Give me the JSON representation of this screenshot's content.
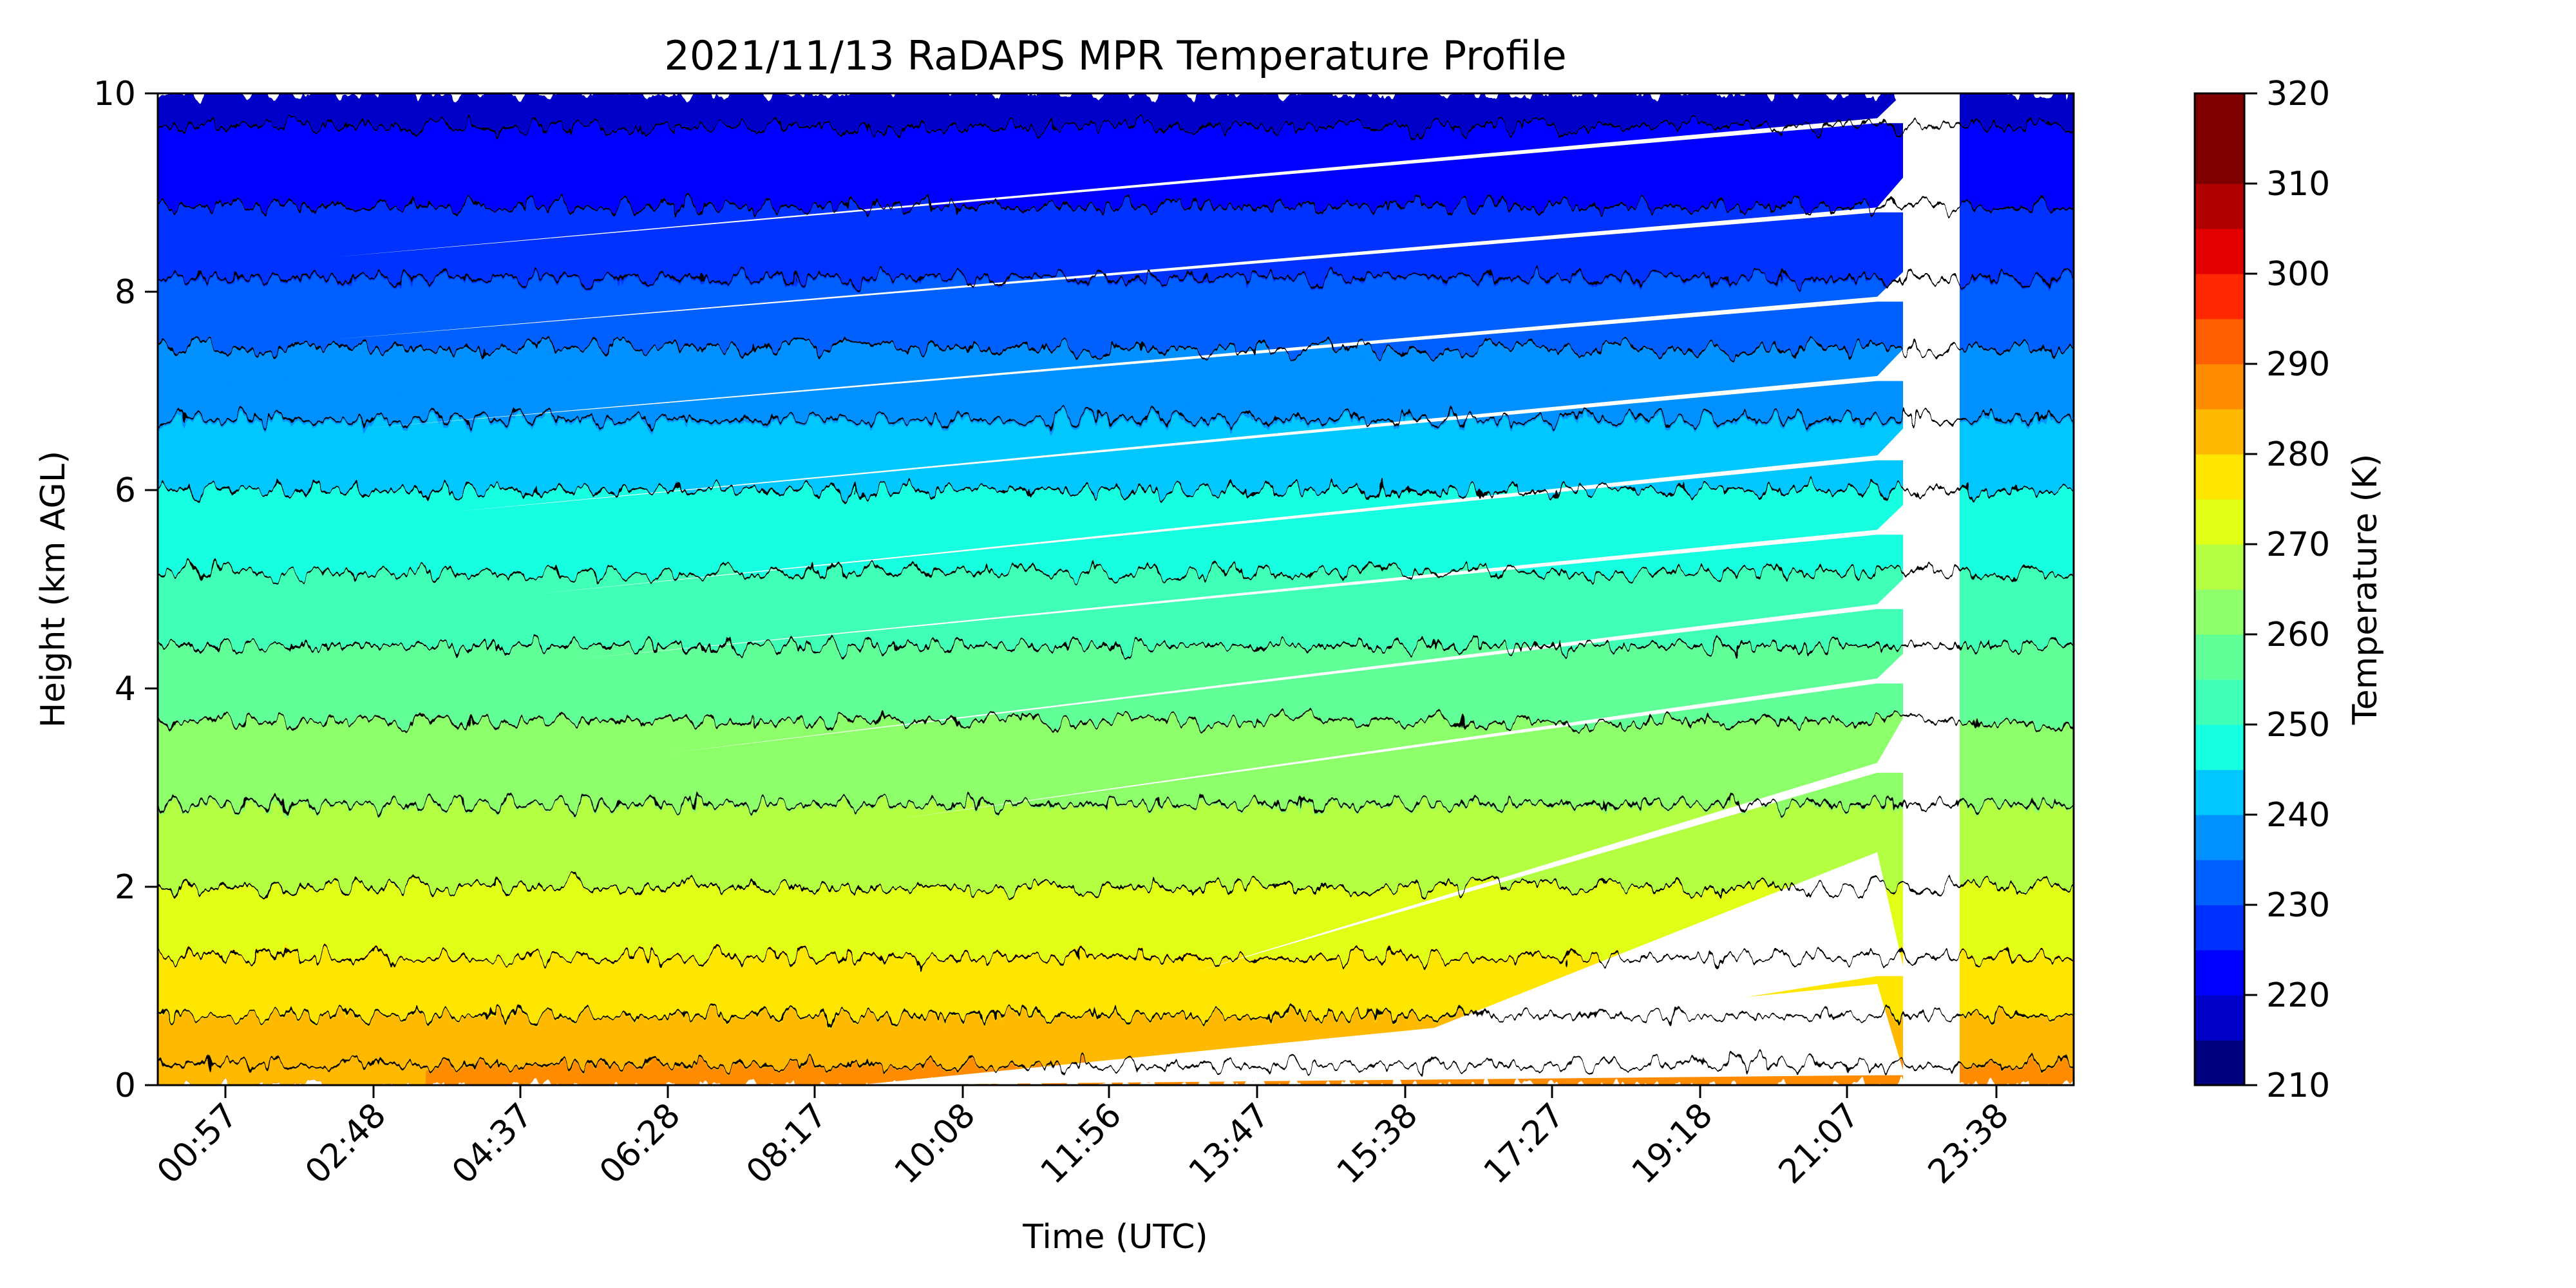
{
  "chart_data": {
    "type": "heatmap",
    "title": "2021/11/13 RaDAPS MPR Temperature Profile",
    "xlabel": "Time (UTC)",
    "ylabel": "Height (km AGL)",
    "x_tick_labels": [
      "00:57",
      "02:48",
      "04:37",
      "06:28",
      "08:17",
      "10:08",
      "11:56",
      "13:47",
      "15:38",
      "17:27",
      "19:18",
      "21:07",
      "23:38"
    ],
    "y_ticks": [
      0,
      2,
      4,
      6,
      8,
      10
    ],
    "ylim": [
      0,
      10
    ],
    "colorbar": {
      "label": "Temperature (K)",
      "range": [
        210,
        320
      ],
      "step": 5,
      "ticks": [
        210,
        220,
        230,
        240,
        250,
        260,
        270,
        280,
        290,
        300,
        310,
        320
      ],
      "colors": [
        "#00007f",
        "#0000c8",
        "#0000ff",
        "#0030ff",
        "#0060ff",
        "#0090ff",
        "#00c8ff",
        "#16ffe1",
        "#40ffb7",
        "#60ff97",
        "#8dff6a",
        "#b4ff43",
        "#e1ff16",
        "#ffe600",
        "#ffb900",
        "#ff8c00",
        "#ff5f00",
        "#ff2800",
        "#e30000",
        "#b10000",
        "#7f0000",
        "#7f0000"
      ]
    },
    "profile": {
      "description_levels_km": [
        0,
        1,
        2,
        3,
        4,
        5,
        6,
        7,
        8,
        9,
        10
      ],
      "temperature_K_at_levels": [
        287,
        277,
        270,
        264,
        258,
        251,
        245,
        238,
        231,
        224,
        218
      ]
    },
    "data_gap": {
      "start_label": "21:07",
      "end_label": "23:38"
    }
  }
}
